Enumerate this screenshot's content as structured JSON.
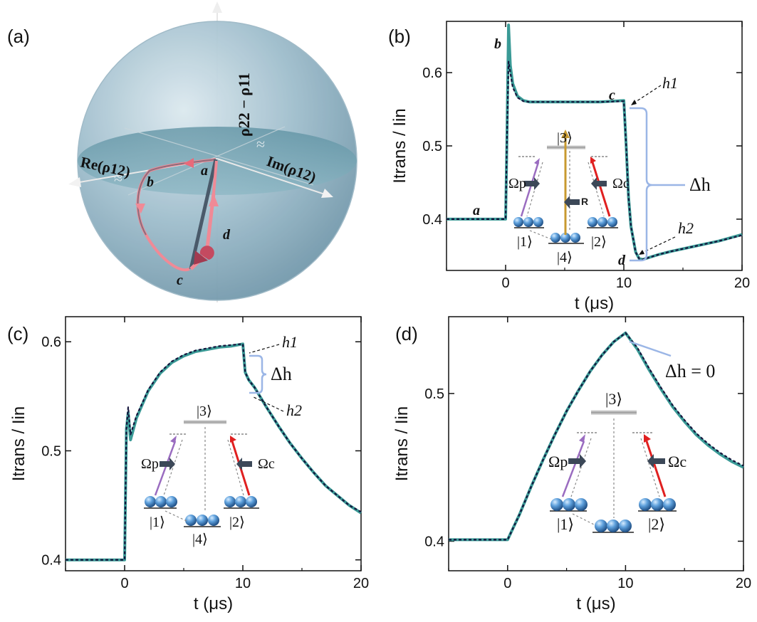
{
  "bloch": {
    "panel_label": "(a)",
    "axis_z": "ρ22 − ρ11",
    "axis_re": "Re(ρ12)",
    "axis_im": "Im(ρ12)",
    "points": [
      "a",
      "b",
      "c",
      "d"
    ],
    "colors": {
      "sphere": "#8fb3c2",
      "path_light": "#e87a86",
      "path_dark": "#4a5a6a"
    }
  },
  "level_labels": {
    "l1": "|1⟩",
    "l2": "|2⟩",
    "l3": "|3⟩",
    "l4": "|4⟩",
    "omega_p": "Ωp",
    "omega_c": "Ωc",
    "R": "R"
  },
  "chart_data": [
    {
      "panel": "(b)",
      "type": "line",
      "xlabel": "t (μs)",
      "ylabel": "Itrans / Iin",
      "xlim": [
        -5,
        20
      ],
      "ylim": [
        0.33,
        0.67
      ],
      "xticks": [
        0,
        10,
        20
      ],
      "yticks": [
        0.4,
        0.5,
        0.6
      ],
      "annotations": [
        "a",
        "b",
        "c",
        "d",
        "h1",
        "h2",
        "Δh"
      ],
      "series": [
        {
          "style": "data",
          "color": "#3a9a96",
          "x": [
            -5,
            -1,
            0,
            0.1,
            0.25,
            0.4,
            0.6,
            1.0,
            1.5,
            2,
            4,
            6,
            8,
            10,
            10.2,
            10.4,
            10.6,
            11,
            11.3,
            11.6,
            12,
            13,
            14,
            16,
            18,
            20
          ],
          "y": [
            0.4,
            0.4,
            0.4,
            0.5,
            0.665,
            0.61,
            0.585,
            0.568,
            0.562,
            0.56,
            0.56,
            0.56,
            0.56,
            0.562,
            0.5,
            0.43,
            0.39,
            0.355,
            0.346,
            0.345,
            0.347,
            0.352,
            0.356,
            0.363,
            0.37,
            0.379
          ]
        },
        {
          "style": "fit",
          "color": "#14143c",
          "x": [
            -5,
            -1,
            0,
            0.1,
            0.25,
            0.4,
            0.6,
            1.0,
            1.5,
            2,
            4,
            6,
            8,
            10,
            10.2,
            10.4,
            10.6,
            11,
            11.3,
            11.6,
            12,
            13,
            14,
            16,
            18,
            20
          ],
          "y": [
            0.4,
            0.4,
            0.4,
            0.5,
            0.615,
            0.6,
            0.58,
            0.566,
            0.561,
            0.56,
            0.56,
            0.56,
            0.56,
            0.561,
            0.5,
            0.43,
            0.39,
            0.355,
            0.346,
            0.345,
            0.347,
            0.352,
            0.356,
            0.363,
            0.37,
            0.378
          ]
        }
      ]
    },
    {
      "panel": "(c)",
      "type": "line",
      "xlabel": "t (μs)",
      "ylabel": "Itrans / Iin",
      "xlim": [
        -5,
        20
      ],
      "ylim": [
        0.39,
        0.623
      ],
      "xticks": [
        0,
        10,
        20
      ],
      "yticks": [
        0.4,
        0.5,
        0.6
      ],
      "annotations": [
        "h1",
        "h2",
        "Δh"
      ],
      "series": [
        {
          "style": "data",
          "color": "#3a9a96",
          "x": [
            -5,
            -1,
            0,
            0.15,
            0.3,
            0.5,
            1,
            2,
            3,
            4,
            5,
            6,
            7,
            8,
            9,
            10,
            10.2,
            10.5,
            11,
            12,
            13,
            14,
            15,
            16,
            17,
            18,
            19,
            20
          ],
          "y": [
            0.4,
            0.4,
            0.4,
            0.52,
            0.535,
            0.51,
            0.53,
            0.555,
            0.571,
            0.581,
            0.587,
            0.591,
            0.593,
            0.595,
            0.596,
            0.598,
            0.572,
            0.565,
            0.558,
            0.54,
            0.523,
            0.507,
            0.493,
            0.48,
            0.468,
            0.459,
            0.45,
            0.443
          ]
        },
        {
          "style": "fit",
          "color": "#14143c",
          "x": [
            -5,
            -1,
            0,
            0.15,
            0.3,
            0.5,
            1,
            2,
            3,
            4,
            5,
            6,
            7,
            8,
            9,
            10,
            10.2,
            10.5,
            11,
            12,
            13,
            14,
            15,
            16,
            17,
            18,
            19,
            20
          ],
          "y": [
            0.4,
            0.4,
            0.4,
            0.52,
            0.54,
            0.515,
            0.532,
            0.556,
            0.572,
            0.582,
            0.588,
            0.592,
            0.594,
            0.596,
            0.597,
            0.598,
            0.572,
            0.565,
            0.558,
            0.54,
            0.523,
            0.507,
            0.493,
            0.48,
            0.468,
            0.459,
            0.45,
            0.444
          ]
        }
      ]
    },
    {
      "panel": "(d)",
      "type": "line",
      "xlabel": "t (μs)",
      "ylabel": "Itrans / Iin",
      "xlim": [
        -5,
        20
      ],
      "ylim": [
        0.38,
        0.552
      ],
      "xticks": [
        0,
        10,
        20
      ],
      "yticks": [
        0.4,
        0.5
      ],
      "annotations": [
        "Δh = 0"
      ],
      "series": [
        {
          "style": "data",
          "color": "#3a9a96",
          "x": [
            -5,
            -1,
            0,
            1,
            2,
            3,
            4,
            5,
            6,
            7,
            8,
            9,
            10,
            11,
            12,
            13,
            14,
            15,
            16,
            17,
            18,
            19,
            20
          ],
          "y": [
            0.401,
            0.401,
            0.401,
            0.418,
            0.437,
            0.455,
            0.472,
            0.488,
            0.502,
            0.515,
            0.526,
            0.535,
            0.541,
            0.53,
            0.516,
            0.503,
            0.491,
            0.481,
            0.472,
            0.465,
            0.459,
            0.454,
            0.45
          ]
        },
        {
          "style": "fit",
          "color": "#14143c",
          "x": [
            -5,
            -1,
            0,
            1,
            2,
            3,
            4,
            5,
            6,
            7,
            8,
            9,
            10,
            11,
            12,
            13,
            14,
            15,
            16,
            17,
            18,
            19,
            20
          ],
          "y": [
            0.401,
            0.401,
            0.401,
            0.418,
            0.437,
            0.455,
            0.472,
            0.488,
            0.502,
            0.515,
            0.526,
            0.535,
            0.541,
            0.531,
            0.517,
            0.504,
            0.492,
            0.482,
            0.473,
            0.466,
            0.46,
            0.455,
            0.451
          ]
        }
      ]
    }
  ]
}
